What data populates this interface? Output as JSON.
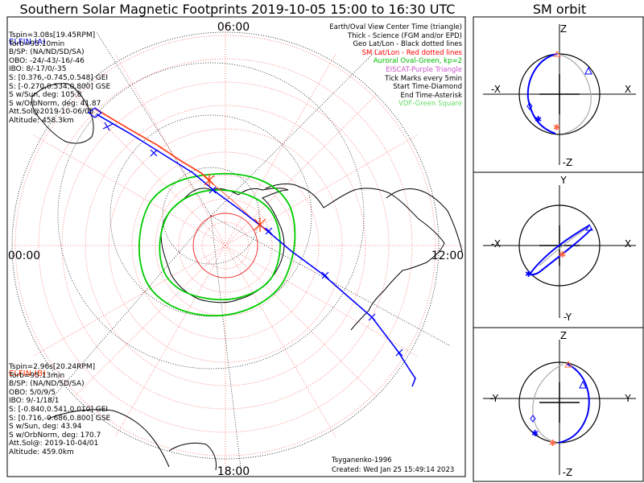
{
  "title": "Southern Solar Magnetic Footprints 2019-10-05 15:00 to 16:30 UTC",
  "orbit_title": "SM orbit",
  "map": {
    "time_labels": {
      "top": "06:00",
      "left": "00:00",
      "right": "12:00",
      "bottom": "18:00"
    },
    "credits": {
      "author": "Tsyganenko-1996",
      "created": "Created: Wed Jan 25 15:49:14 2023"
    }
  },
  "elfin_a": {
    "name": "ELFIN (A)",
    "color": "#0000ff",
    "lines": [
      "Tspin=3.08s[19.45RPM]",
      "Torb=95.10min",
      "B/SP: (NA/ND/SD/SA)",
      "OBO: -24/-43/-16/-46",
      "IBO: 8/-17/0/-35",
      "S: [0.376,-0.745,0.548] GEI",
      "S: [-0.270,0.534,0.800] GSE",
      "S w/Sun, deg: 105.8",
      "S w/OrbNorm, deg: 41.87",
      "Att.Sol@2019-10-06/05",
      "Altitude: 458.3km"
    ]
  },
  "elfin_b": {
    "name": "ELFIN (B)",
    "color": "#ff3300",
    "lines": [
      "Tspin=2.96s[20.24RPM]",
      "Torb=95.13min",
      "B/SP: (NA/ND/SD/SA)",
      "OBO: 5/0/9/5",
      "IBO: 9/-1/18/1",
      "S: [-0.840,0.541,0.010] GEI",
      "S: [0.716,-0.686,0.800] GSE",
      "S w/Sun, deg: 43.94",
      "S w/OrbNorm, deg: 170.7",
      "Att.Sol@: 2019-10-04/01",
      "Altitude: 459.0km"
    ]
  },
  "legend": [
    {
      "text": "Earth/Oval View Center Time (triangle)",
      "color": "#000000"
    },
    {
      "text": "Thick - Science (FGM and/or EPD)",
      "color": "#000000"
    },
    {
      "text": "Geo Lat/Lon - Black dotted lines",
      "color": "#000000"
    },
    {
      "text": "SM Lat/Lon - Red dotted lines",
      "color": "#ff0000"
    },
    {
      "text": "Auroral Oval-Green, kp=2",
      "color": "#00bb00"
    },
    {
      "text": "EISCAT-Purple Triangle",
      "color": "#cc55cc"
    },
    {
      "text": "Tick Marks every 5min",
      "color": "#000000"
    },
    {
      "text": "Start Time-Diamond",
      "color": "#000000"
    },
    {
      "text": "End Time-Asterisk",
      "color": "#000000"
    },
    {
      "text": "VDF-Green Square",
      "color": "#66dd66"
    }
  ],
  "orbit_panels": [
    {
      "top": "Z",
      "bottom": "-Z",
      "left": "-X",
      "right": "X"
    },
    {
      "top": "Y",
      "bottom": "-Y",
      "left": "-X",
      "right": "X"
    },
    {
      "top": "Z",
      "bottom": "-Z",
      "left": "-Y",
      "right": "Y"
    }
  ]
}
